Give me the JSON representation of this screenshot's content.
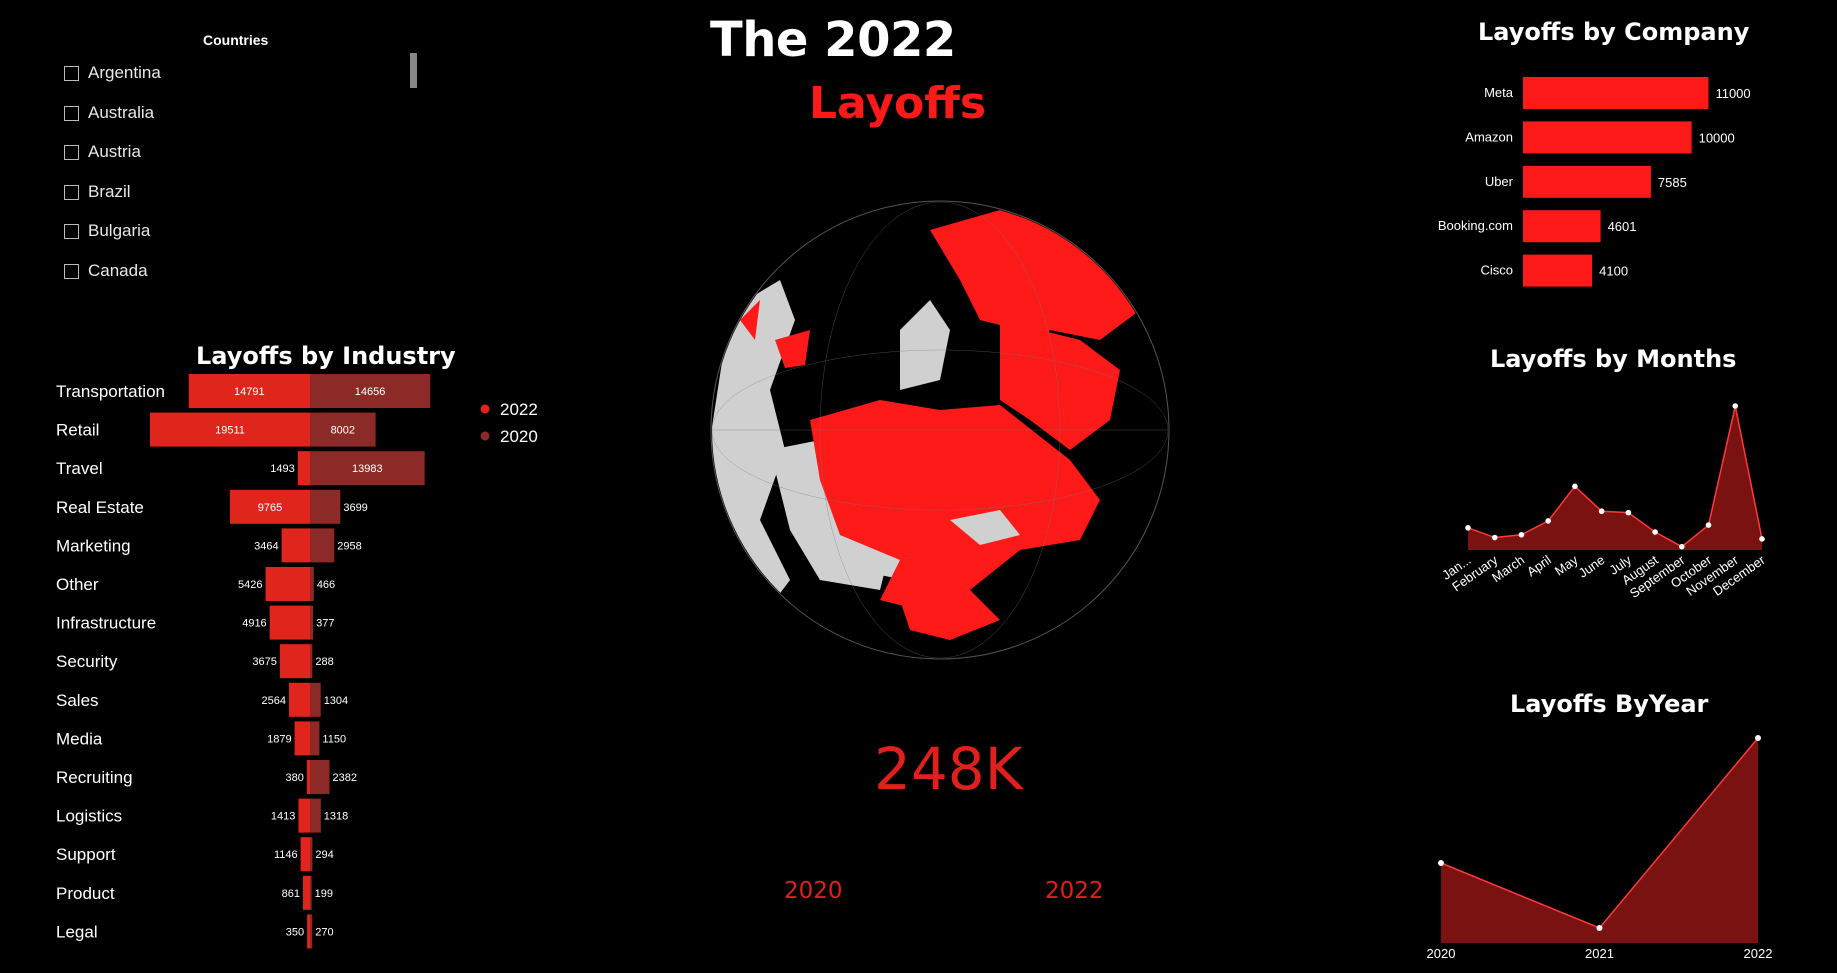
{
  "slicer": {
    "title": "Countries",
    "items": [
      "Argentina",
      "Australia",
      "Austria",
      "Brazil",
      "Bulgaria",
      "Canada"
    ]
  },
  "header": {
    "title": "The 2022",
    "subtitle": "Layoffs"
  },
  "kpi": {
    "value": "248K"
  },
  "year_labels": {
    "left": "2020",
    "right": "2022"
  },
  "colors": {
    "accent": "#ff1a1a",
    "series_2022": "#e0261c",
    "series_2020": "#8b2a26",
    "area": "#7a1212",
    "globe_land": "#d0d0d0"
  },
  "chart_data": [
    {
      "id": "industry",
      "type": "bar",
      "title": "Layoffs by Industry",
      "orientation": "horizontal-diverging",
      "categories": [
        "Transportation",
        "Retail",
        "Travel",
        "Real Estate",
        "Marketing",
        "Other",
        "Infrastructure",
        "Security",
        "Sales",
        "Media",
        "Recruiting",
        "Logistics",
        "Support",
        "Product",
        "Legal"
      ],
      "series": [
        {
          "name": "2022",
          "values": [
            14791,
            19511,
            1493,
            9765,
            3464,
            5426,
            4916,
            3675,
            2564,
            1879,
            380,
            1413,
            1146,
            861,
            350
          ]
        },
        {
          "name": "2020",
          "values": [
            14656,
            8002,
            13983,
            3699,
            2958,
            466,
            377,
            288,
            1304,
            1150,
            2382,
            1318,
            294,
            199,
            270
          ]
        }
      ],
      "legend": "right"
    },
    {
      "id": "company",
      "type": "bar",
      "title": "Layoffs by Company",
      "orientation": "horizontal",
      "categories": [
        "Meta",
        "Amazon",
        "Uber",
        "Booking.com",
        "Cisco"
      ],
      "values": [
        11000,
        10000,
        7585,
        4601,
        4100
      ]
    },
    {
      "id": "months",
      "type": "area",
      "title": "Layoffs by Months",
      "categories": [
        "Jan...",
        "February",
        "March",
        "April",
        "May",
        "June",
        "July",
        "August",
        "September",
        "October",
        "November",
        "December"
      ],
      "values": [
        8000,
        4500,
        5500,
        10500,
        23000,
        14000,
        13500,
        6500,
        1200,
        9000,
        52000,
        4000
      ]
    },
    {
      "id": "year",
      "type": "area",
      "title": "Layoffs ByYear",
      "categories": [
        "2020",
        "2021",
        "2022"
      ],
      "values": [
        80000,
        15000,
        205000
      ]
    }
  ]
}
